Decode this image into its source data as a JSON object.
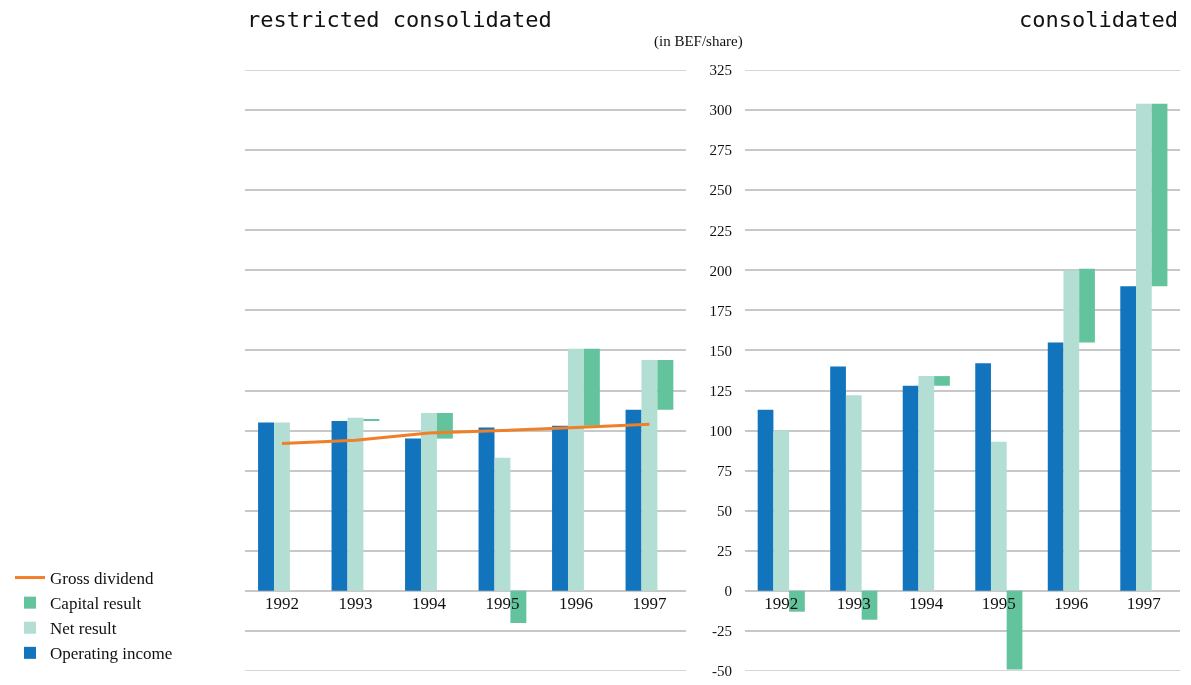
{
  "chart_data": [
    {
      "type": "bar",
      "title": "restricted consolidated",
      "categories": [
        "1992",
        "1993",
        "1994",
        "1995",
        "1996",
        "1997"
      ],
      "series": [
        {
          "name": "Operating income",
          "color": "#1174bc",
          "values": [
            105,
            106,
            95,
            102,
            103,
            113
          ]
        },
        {
          "name": "Net result",
          "color": "#b2ded4",
          "values": [
            105,
            108,
            111,
            83,
            151,
            144
          ]
        },
        {
          "name": "Capital result",
          "color": "#62c39c",
          "values": [
            null,
            1,
            16,
            -20,
            48,
            31
          ],
          "base": [
            null,
            106,
            95,
            0,
            103,
            113
          ]
        },
        {
          "name": "Gross dividend",
          "color": "#f07f2a",
          "type": "line",
          "values": [
            92,
            94,
            98.5,
            100,
            102,
            104
          ]
        }
      ],
      "ylim": [
        -50,
        325
      ],
      "yticks": [
        -50,
        -25,
        0,
        25,
        50,
        75,
        100,
        125,
        150,
        175,
        200,
        225,
        250,
        275,
        300,
        325
      ],
      "grid": "y",
      "legend": "left",
      "tick_labels": "x",
      "marker": "none",
      "line_style": "solid"
    },
    {
      "type": "bar",
      "title": "consolidated",
      "ylabel": "(in BEF/share)",
      "categories": [
        "1992",
        "1993",
        "1994",
        "1995",
        "1996",
        "1997"
      ],
      "series": [
        {
          "color": "#1174bc",
          "values": [
            113,
            140,
            128,
            142,
            155,
            190
          ]
        },
        {
          "color": "#b2ded4",
          "values": [
            100,
            122,
            134,
            93,
            200,
            304
          ]
        },
        {
          "color": "#62c39c",
          "values": [
            -13,
            -18,
            6,
            -49,
            46,
            114
          ],
          "base": [
            0,
            0,
            128,
            0,
            155,
            190
          ]
        }
      ],
      "ylim": [
        -50,
        325
      ],
      "yticks": [
        -50,
        -25,
        0,
        25,
        50,
        75,
        100,
        125,
        150,
        175,
        200,
        225,
        250,
        275,
        300,
        325
      ],
      "grid": "y"
    }
  ]
}
